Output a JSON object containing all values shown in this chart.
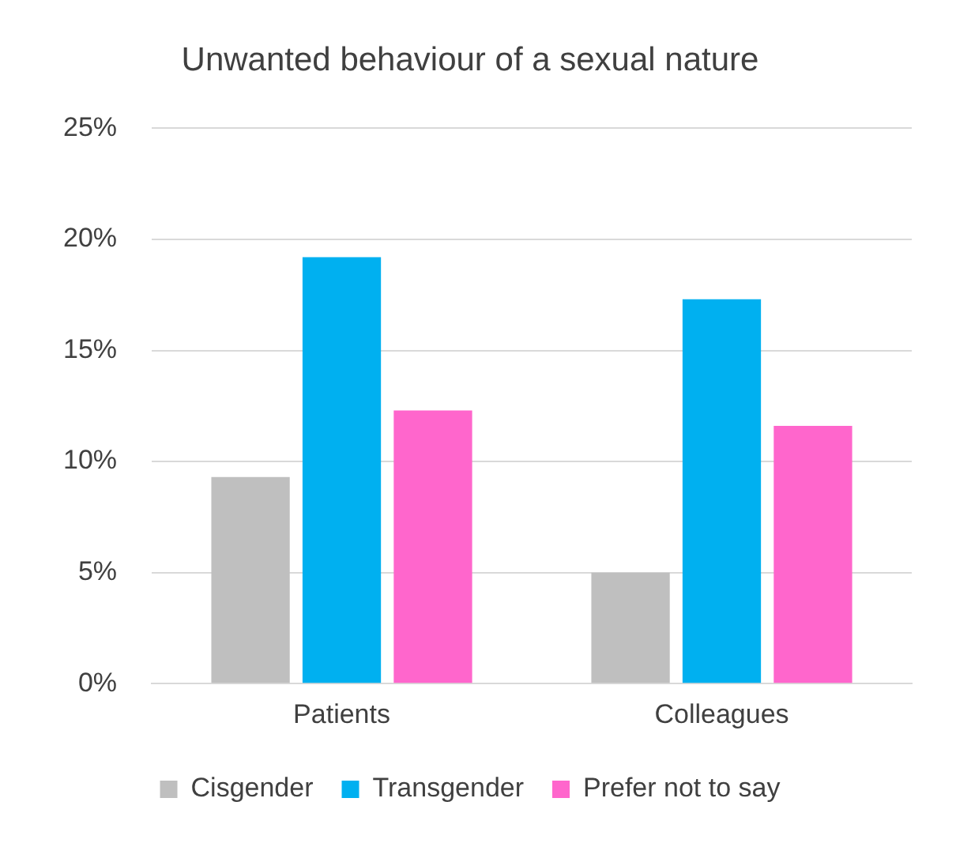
{
  "chart_data": {
    "type": "bar",
    "title": "Unwanted behaviour of a sexual nature",
    "categories": [
      "Patients",
      "Colleagues"
    ],
    "series": [
      {
        "name": "Cisgender",
        "color": "#bfbfbf",
        "values": [
          9.3,
          5.0
        ]
      },
      {
        "name": "Transgender",
        "color": "#00b0f0",
        "values": [
          19.2,
          17.3
        ]
      },
      {
        "name": "Prefer not to say",
        "color": "#ff66cc",
        "values": [
          12.3,
          11.6
        ]
      }
    ],
    "ylim": [
      0,
      25
    ],
    "yticks": [
      {
        "value": 0,
        "label": "0%"
      },
      {
        "value": 5,
        "label": "5%"
      },
      {
        "value": 10,
        "label": "10%"
      },
      {
        "value": 15,
        "label": "15%"
      },
      {
        "value": 20,
        "label": "20%"
      },
      {
        "value": 25,
        "label": "25%"
      }
    ],
    "grid": "y",
    "legend": "bottom"
  }
}
